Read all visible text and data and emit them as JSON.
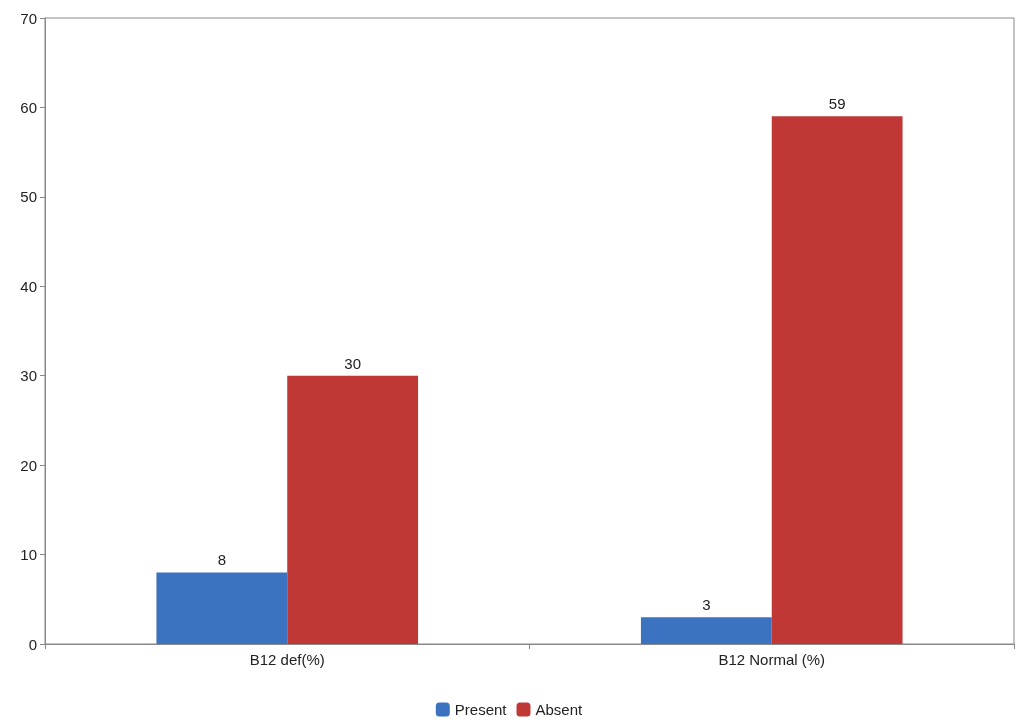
{
  "chart_data": {
    "type": "bar",
    "categories": [
      "B12 def(%)",
      "B12 Normal (%)"
    ],
    "series": [
      {
        "name": "Present",
        "color": "#3b73c0",
        "values": [
          8,
          3
        ]
      },
      {
        "name": "Absent",
        "color": "#bf3836",
        "values": [
          30,
          59
        ]
      }
    ],
    "ylim": [
      0,
      70
    ],
    "yticks": [
      0,
      10,
      20,
      30,
      40,
      50,
      60,
      70
    ],
    "grid": false,
    "legend": "bottom",
    "data_labels": true
  }
}
